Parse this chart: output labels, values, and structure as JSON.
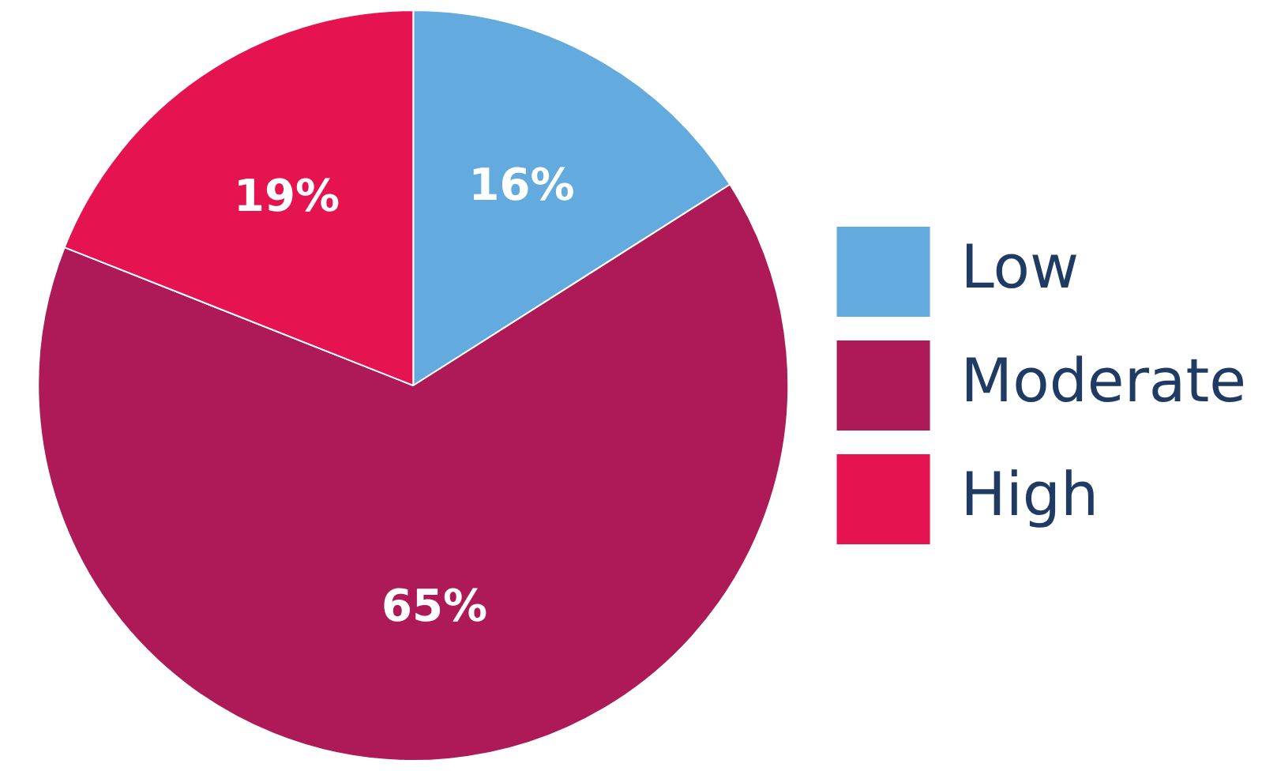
{
  "chart_data": {
    "type": "pie",
    "categories": [
      "Low",
      "Moderate",
      "High"
    ],
    "values": [
      16,
      65,
      19
    ],
    "colors": [
      "#63aadf",
      "#ad1a57",
      "#e5134f"
    ],
    "value_labels": [
      "16%",
      "65%",
      "19%"
    ],
    "legend": "right"
  }
}
